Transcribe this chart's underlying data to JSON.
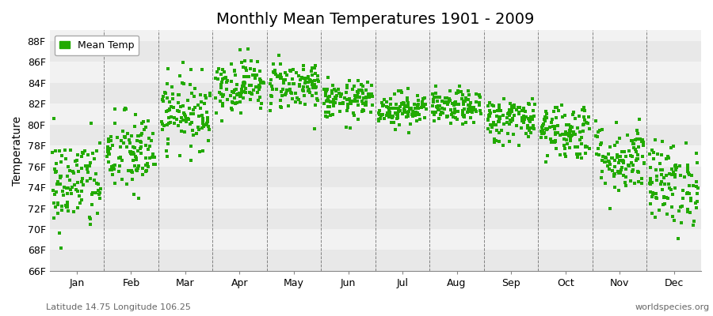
{
  "title": "Monthly Mean Temperatures 1901 - 2009",
  "ylabel": "Temperature",
  "xlabel": "",
  "footnote_left": "Latitude 14.75 Longitude 106.25",
  "footnote_right": "worldspecies.org",
  "legend_label": "Mean Temp",
  "dot_color": "#22aa00",
  "stripe_colors": [
    "#e8e8e8",
    "#f2f2f2"
  ],
  "ylim": [
    66,
    89
  ],
  "yticks": [
    66,
    68,
    70,
    72,
    74,
    76,
    78,
    80,
    82,
    84,
    86,
    88
  ],
  "ytick_labels": [
    "66F",
    "68F",
    "70F",
    "72F",
    "74F",
    "76F",
    "78F",
    "80F",
    "82F",
    "84F",
    "86F",
    "88F"
  ],
  "months": [
    "Jan",
    "Feb",
    "Mar",
    "Apr",
    "May",
    "Jun",
    "Jul",
    "Aug",
    "Sep",
    "Oct",
    "Nov",
    "Dec"
  ],
  "mean_temps_F": [
    74.3,
    77.2,
    81.2,
    83.8,
    83.8,
    82.3,
    81.5,
    81.6,
    80.5,
    79.4,
    76.8,
    74.3
  ],
  "std_temps_F": [
    2.3,
    2.0,
    1.7,
    1.3,
    1.2,
    0.9,
    0.8,
    0.8,
    1.1,
    1.4,
    1.7,
    2.0
  ],
  "n_years": 109,
  "seed": 42,
  "title_fontsize": 14,
  "axis_fontsize": 9,
  "ylabel_fontsize": 10,
  "legend_fontsize": 9
}
